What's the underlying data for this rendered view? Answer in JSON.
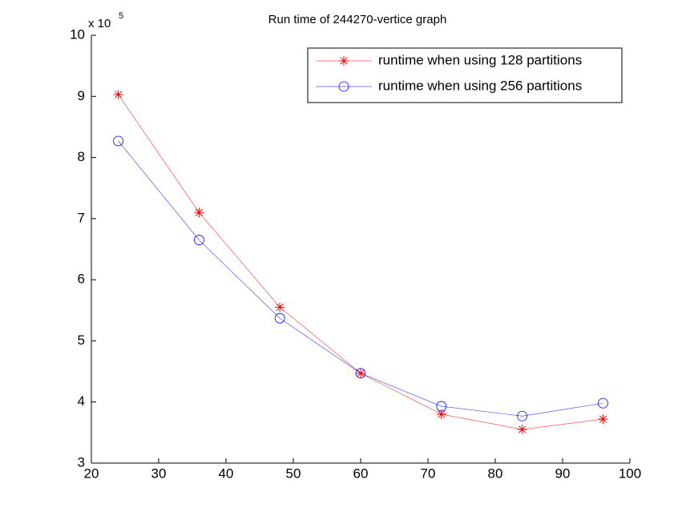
{
  "chart_data": {
    "type": "line",
    "title": "Run time of 244270-vertice graph",
    "y_scale_label": "x 10",
    "y_scale_exponent": "5",
    "x": [
      24,
      36,
      48,
      60,
      72,
      84,
      96
    ],
    "series": [
      {
        "name": "runtime when using 128 partitions",
        "color": "#ff0000",
        "marker": "star",
        "values": [
          9.03,
          7.1,
          5.55,
          4.47,
          3.8,
          3.55,
          3.72
        ]
      },
      {
        "name": "runtime when using 256 partitions",
        "color": "#0000ff",
        "marker": "circle",
        "values": [
          8.27,
          6.65,
          5.37,
          4.47,
          3.93,
          3.77,
          3.98
        ]
      }
    ],
    "xlim": [
      20,
      100
    ],
    "xticks": [
      20,
      30,
      40,
      50,
      60,
      70,
      80,
      90,
      100
    ],
    "ylim": [
      3,
      10
    ],
    "yticks": [
      3,
      4,
      5,
      6,
      7,
      8,
      9,
      10
    ],
    "grid": false,
    "legend": "northeast"
  }
}
